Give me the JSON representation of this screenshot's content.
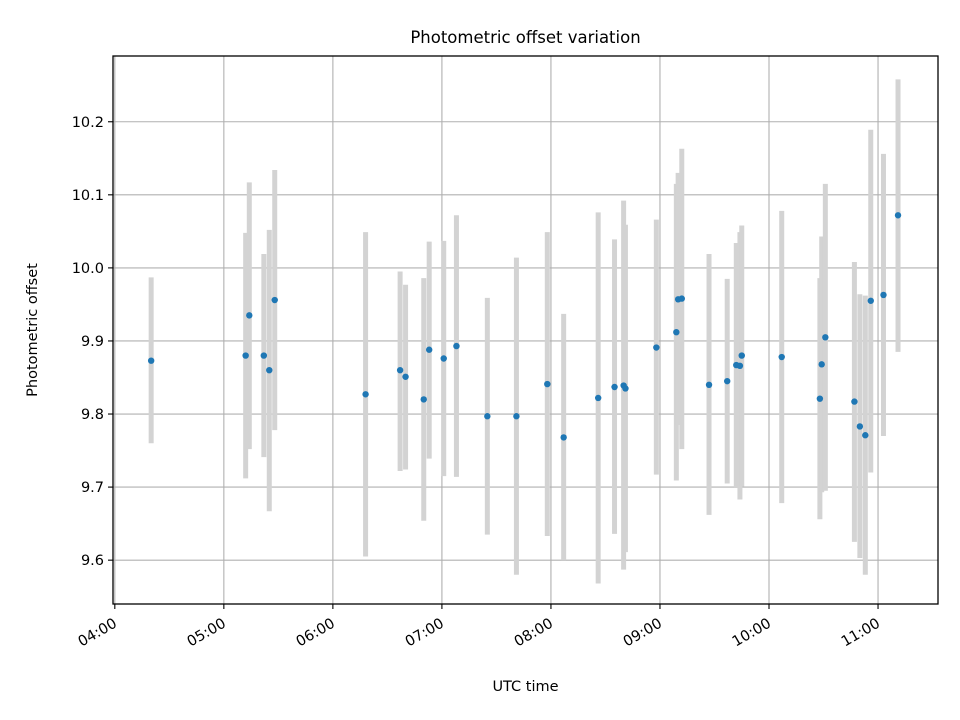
{
  "chart_data": {
    "type": "scatter",
    "title": "Photometric offset variation",
    "xlabel": "UTC time",
    "ylabel": "Photometric offset",
    "x_ticks": [
      "04:00",
      "05:00",
      "06:00",
      "07:00",
      "08:00",
      "09:00",
      "10:00",
      "11:00"
    ],
    "y_ticks": [
      "9.6",
      "9.7",
      "9.8",
      "9.9",
      "10.0",
      "10.1",
      "10.2"
    ],
    "xlim": [
      "03:59",
      "11:33"
    ],
    "ylim": [
      9.54,
      10.29
    ],
    "grid": true,
    "colors": {
      "point": "#1f77b4",
      "errorbar": "#d3d3d3",
      "grid": "#b0b0b0"
    },
    "points": [
      {
        "t": "04:20",
        "y": 9.873,
        "lo": 9.76,
        "hi": 9.987
      },
      {
        "t": "05:12",
        "y": 9.88,
        "lo": 9.712,
        "hi": 10.048
      },
      {
        "t": "05:14",
        "y": 9.935,
        "lo": 9.752,
        "hi": 10.117
      },
      {
        "t": "05:22",
        "y": 9.88,
        "lo": 9.741,
        "hi": 10.019
      },
      {
        "t": "05:25",
        "y": 9.86,
        "lo": 9.667,
        "hi": 10.052
      },
      {
        "t": "05:28",
        "y": 9.956,
        "lo": 9.778,
        "hi": 10.134
      },
      {
        "t": "06:18",
        "y": 9.827,
        "lo": 9.605,
        "hi": 10.049
      },
      {
        "t": "06:37",
        "y": 9.86,
        "lo": 9.722,
        "hi": 9.995
      },
      {
        "t": "06:40",
        "y": 9.851,
        "lo": 9.724,
        "hi": 9.977
      },
      {
        "t": "06:50",
        "y": 9.82,
        "lo": 9.654,
        "hi": 9.986
      },
      {
        "t": "06:53",
        "y": 9.888,
        "lo": 9.739,
        "hi": 10.036
      },
      {
        "t": "07:01",
        "y": 9.876,
        "lo": 9.715,
        "hi": 10.037
      },
      {
        "t": "07:08",
        "y": 9.893,
        "lo": 9.714,
        "hi": 10.072
      },
      {
        "t": "07:25",
        "y": 9.797,
        "lo": 9.635,
        "hi": 9.959
      },
      {
        "t": "07:41",
        "y": 9.797,
        "lo": 9.58,
        "hi": 10.014
      },
      {
        "t": "07:58",
        "y": 9.841,
        "lo": 9.633,
        "hi": 10.049
      },
      {
        "t": "08:07",
        "y": 9.768,
        "lo": 9.6,
        "hi": 9.937
      },
      {
        "t": "08:26",
        "y": 9.822,
        "lo": 9.568,
        "hi": 10.076
      },
      {
        "t": "08:35",
        "y": 9.837,
        "lo": 9.636,
        "hi": 10.039
      },
      {
        "t": "08:40",
        "y": 9.839,
        "lo": 9.587,
        "hi": 10.092
      },
      {
        "t": "08:41",
        "y": 9.835,
        "lo": 9.611,
        "hi": 10.059
      },
      {
        "t": "08:58",
        "y": 9.891,
        "lo": 9.717,
        "hi": 10.066
      },
      {
        "t": "09:09",
        "y": 9.912,
        "lo": 9.709,
        "hi": 10.115
      },
      {
        "t": "09:10",
        "y": 9.957,
        "lo": 9.785,
        "hi": 10.13
      },
      {
        "t": "09:12",
        "y": 9.958,
        "lo": 9.752,
        "hi": 10.163
      },
      {
        "t": "09:27",
        "y": 9.84,
        "lo": 9.662,
        "hi": 10.019
      },
      {
        "t": "09:37",
        "y": 9.845,
        "lo": 9.705,
        "hi": 9.985
      },
      {
        "t": "09:42",
        "y": 9.867,
        "lo": 9.7,
        "hi": 10.034
      },
      {
        "t": "09:44",
        "y": 9.866,
        "lo": 9.683,
        "hi": 10.049
      },
      {
        "t": "09:45",
        "y": 9.88,
        "lo": 9.701,
        "hi": 10.058
      },
      {
        "t": "10:07",
        "y": 9.878,
        "lo": 9.678,
        "hi": 10.078
      },
      {
        "t": "10:28",
        "y": 9.821,
        "lo": 9.656,
        "hi": 9.986
      },
      {
        "t": "10:29",
        "y": 9.868,
        "lo": 9.693,
        "hi": 10.043
      },
      {
        "t": "10:31",
        "y": 9.905,
        "lo": 9.695,
        "hi": 10.115
      },
      {
        "t": "10:47",
        "y": 9.817,
        "lo": 9.625,
        "hi": 10.008
      },
      {
        "t": "10:50",
        "y": 9.783,
        "lo": 9.603,
        "hi": 9.964
      },
      {
        "t": "10:53",
        "y": 9.771,
        "lo": 9.58,
        "hi": 9.962
      },
      {
        "t": "10:56",
        "y": 9.955,
        "lo": 9.72,
        "hi": 10.189
      },
      {
        "t": "11:03",
        "y": 9.963,
        "lo": 9.77,
        "hi": 10.156
      },
      {
        "t": "11:11",
        "y": 10.072,
        "lo": 9.885,
        "hi": 10.258
      }
    ]
  }
}
